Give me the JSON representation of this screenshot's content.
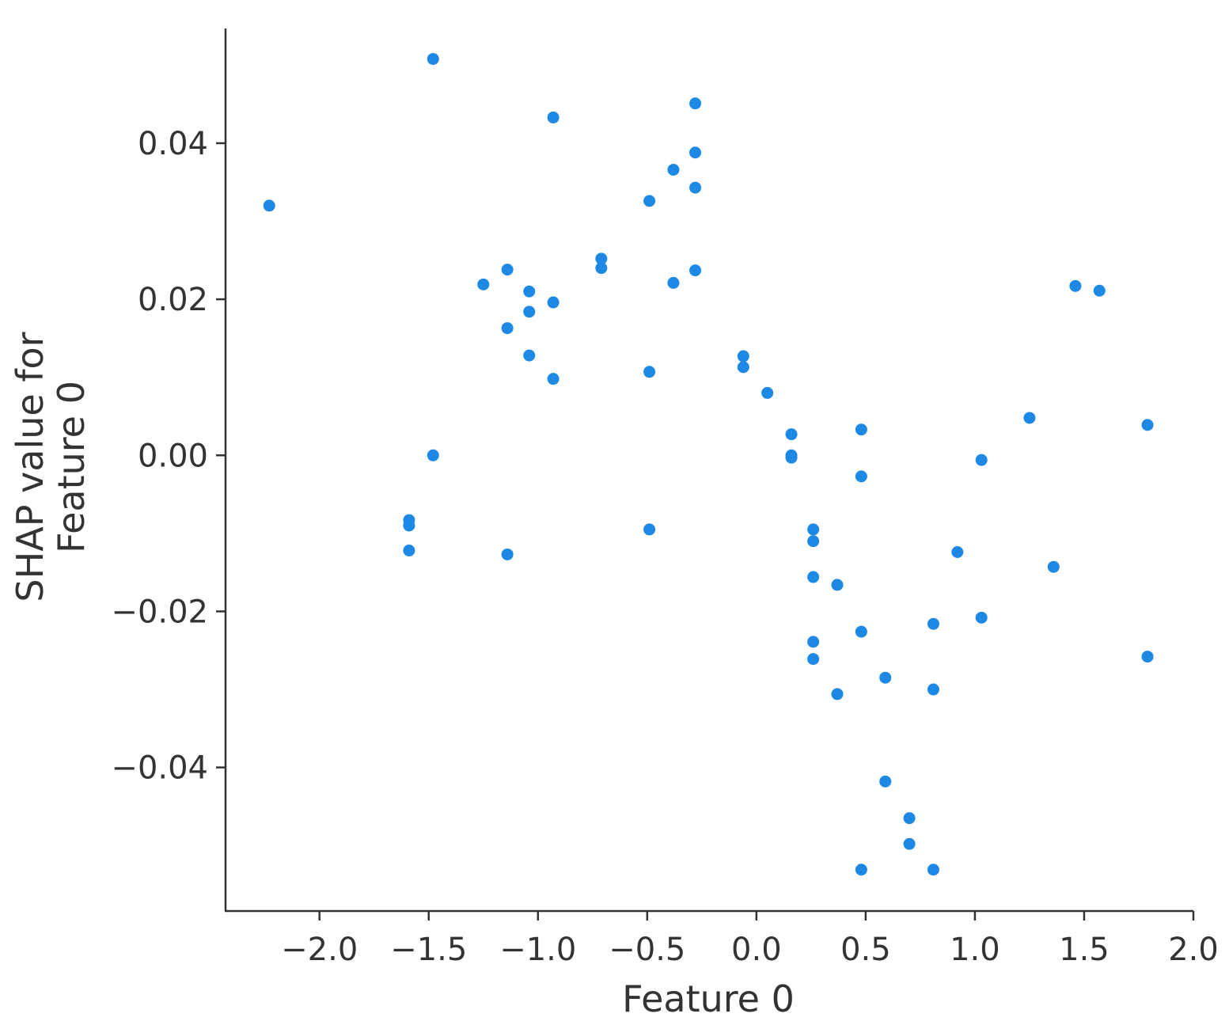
{
  "chart_data": {
    "type": "scatter",
    "title": "",
    "xlabel": "Feature 0",
    "ylabel_lines": [
      "SHAP value for",
      "Feature 0"
    ],
    "xlim": [
      -2.43,
      2.0
    ],
    "ylim": [
      -0.0584,
      0.0547
    ],
    "xticks": [
      -2.0,
      -1.5,
      -1.0,
      -0.5,
      0.0,
      0.5,
      1.0,
      1.5,
      2.0
    ],
    "xtick_labels": [
      "−2.0",
      "−1.5",
      "−1.0",
      "−0.5",
      "0.0",
      "0.5",
      "1.0",
      "1.5",
      "2.0"
    ],
    "yticks": [
      0.04,
      0.02,
      0.0,
      -0.02,
      -0.04
    ],
    "ytick_labels": [
      "0.04",
      "0.02",
      "0.00",
      "−0.02",
      "−0.04"
    ],
    "grid": false,
    "legend": "none",
    "marker_color": "#1e88e5",
    "points": [
      {
        "x": -2.23,
        "y": 0.032
      },
      {
        "x": -1.48,
        "y": 0.0508
      },
      {
        "x": -1.48,
        "y": 0.0
      },
      {
        "x": -1.59,
        "y": -0.0083
      },
      {
        "x": -1.59,
        "y": -0.009
      },
      {
        "x": -1.59,
        "y": -0.0122
      },
      {
        "x": -1.25,
        "y": 0.0219
      },
      {
        "x": -1.14,
        "y": 0.0238
      },
      {
        "x": -1.14,
        "y": 0.0163
      },
      {
        "x": -1.14,
        "y": -0.0127
      },
      {
        "x": -1.04,
        "y": 0.021
      },
      {
        "x": -1.04,
        "y": 0.0184
      },
      {
        "x": -1.04,
        "y": 0.0128
      },
      {
        "x": -0.93,
        "y": 0.0433
      },
      {
        "x": -0.93,
        "y": 0.0196
      },
      {
        "x": -0.93,
        "y": 0.0098
      },
      {
        "x": -0.71,
        "y": 0.0252
      },
      {
        "x": -0.71,
        "y": 0.024
      },
      {
        "x": -0.49,
        "y": 0.0326
      },
      {
        "x": -0.49,
        "y": 0.0107
      },
      {
        "x": -0.49,
        "y": -0.0095
      },
      {
        "x": -0.38,
        "y": 0.0366
      },
      {
        "x": -0.38,
        "y": 0.0221
      },
      {
        "x": -0.28,
        "y": 0.0451
      },
      {
        "x": -0.28,
        "y": 0.0388
      },
      {
        "x": -0.28,
        "y": 0.0343
      },
      {
        "x": -0.28,
        "y": 0.0237
      },
      {
        "x": -0.06,
        "y": 0.0127
      },
      {
        "x": -0.06,
        "y": 0.0113
      },
      {
        "x": 0.05,
        "y": 0.008
      },
      {
        "x": 0.16,
        "y": 0.0027
      },
      {
        "x": 0.16,
        "y": 0.0
      },
      {
        "x": 0.16,
        "y": -0.0003
      },
      {
        "x": 0.26,
        "y": -0.0095
      },
      {
        "x": 0.26,
        "y": -0.011
      },
      {
        "x": 0.26,
        "y": -0.0156
      },
      {
        "x": 0.26,
        "y": -0.0239
      },
      {
        "x": 0.26,
        "y": -0.0261
      },
      {
        "x": 0.37,
        "y": -0.0166
      },
      {
        "x": 0.37,
        "y": -0.0306
      },
      {
        "x": 0.48,
        "y": 0.0033
      },
      {
        "x": 0.48,
        "y": -0.0027
      },
      {
        "x": 0.48,
        "y": -0.0226
      },
      {
        "x": 0.48,
        "y": -0.0531
      },
      {
        "x": 0.59,
        "y": -0.0285
      },
      {
        "x": 0.59,
        "y": -0.0418
      },
      {
        "x": 0.7,
        "y": -0.0465
      },
      {
        "x": 0.7,
        "y": -0.0498
      },
      {
        "x": 0.81,
        "y": -0.0216
      },
      {
        "x": 0.81,
        "y": -0.03
      },
      {
        "x": 0.81,
        "y": -0.0531
      },
      {
        "x": 0.92,
        "y": -0.0124
      },
      {
        "x": 1.03,
        "y": -0.0006
      },
      {
        "x": 1.03,
        "y": -0.0208
      },
      {
        "x": 1.25,
        "y": 0.0048
      },
      {
        "x": 1.36,
        "y": -0.0143
      },
      {
        "x": 1.46,
        "y": 0.0217
      },
      {
        "x": 1.57,
        "y": 0.0211
      },
      {
        "x": 1.79,
        "y": 0.0039
      },
      {
        "x": 1.79,
        "y": -0.0258
      }
    ]
  }
}
